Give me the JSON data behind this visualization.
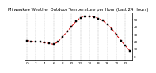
{
  "title": "Milwaukee Weather Outdoor Temperature per Hour (Last 24 Hours)",
  "hours": [
    0,
    1,
    2,
    3,
    4,
    5,
    6,
    7,
    8,
    9,
    10,
    11,
    12,
    13,
    14,
    15,
    16,
    17,
    18,
    19,
    20,
    21,
    22,
    23
  ],
  "temps": [
    22,
    21,
    20,
    20,
    19,
    18,
    17,
    20,
    27,
    34,
    41,
    48,
    53,
    55,
    55,
    54,
    52,
    49,
    44,
    38,
    30,
    22,
    15,
    8
  ],
  "line_color": "#cc0000",
  "marker_color": "#000000",
  "bg_color": "#ffffff",
  "grid_color": "#888888",
  "ylim_min": -5,
  "ylim_max": 60,
  "ytick_values": [
    0,
    10,
    20,
    30,
    40,
    50
  ],
  "ytick_labels": [
    "0",
    "10",
    "20",
    "30",
    "40",
    "50"
  ],
  "xtick_values": [
    0,
    2,
    4,
    6,
    8,
    10,
    12,
    14,
    16,
    18,
    20,
    22
  ],
  "title_fontsize": 3.8,
  "tick_fontsize": 3.0,
  "line_width": 0.7,
  "marker_size": 1.8
}
